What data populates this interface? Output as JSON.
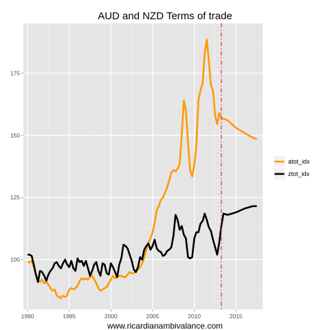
{
  "chart_data": {
    "type": "line",
    "title": "AUD and NZD Terms of trade",
    "xlabel": "www.ricardianambivalance.com",
    "ylabel": "",
    "x_ticks": [
      1990,
      1995,
      2000,
      2005,
      2010,
      2015
    ],
    "y_ticks": [
      100,
      125,
      150,
      175
    ],
    "xlim": [
      1989.5,
      2018.2
    ],
    "ylim": [
      80,
      195
    ],
    "grid": true,
    "legend_position": "right",
    "vline": {
      "x": 2013.25,
      "color": "#e41a1c",
      "style": "dashdot"
    },
    "series": [
      {
        "name": "atot_idx",
        "color": "#ff9900",
        "points": [
          [
            1990.0,
            99.0
          ],
          [
            1990.25,
            99.0
          ],
          [
            1990.5,
            99.5
          ],
          [
            1990.75,
            97.0
          ],
          [
            1991.0,
            94.0
          ],
          [
            1991.25,
            92.0
          ],
          [
            1991.5,
            91.0
          ],
          [
            1991.75,
            92.0
          ],
          [
            1992.0,
            90.5
          ],
          [
            1992.25,
            91.0
          ],
          [
            1992.5,
            90.0
          ],
          [
            1992.75,
            88.5
          ],
          [
            1993.0,
            87.5
          ],
          [
            1993.25,
            88.0
          ],
          [
            1993.5,
            85.5
          ],
          [
            1993.75,
            85.0
          ],
          [
            1994.0,
            84.5
          ],
          [
            1994.25,
            85.5
          ],
          [
            1994.5,
            85.0
          ],
          [
            1994.75,
            85.5
          ],
          [
            1995.0,
            88.0
          ],
          [
            1995.25,
            88.5
          ],
          [
            1995.5,
            88.0
          ],
          [
            1995.75,
            88.5
          ],
          [
            1996.0,
            89.5
          ],
          [
            1996.25,
            91.5
          ],
          [
            1996.5,
            92.5
          ],
          [
            1996.75,
            92.0
          ],
          [
            1997.0,
            92.5
          ],
          [
            1997.25,
            92.0
          ],
          [
            1997.5,
            93.0
          ],
          [
            1997.75,
            93.5
          ],
          [
            1998.0,
            92.0
          ],
          [
            1998.25,
            90.5
          ],
          [
            1998.5,
            88.5
          ],
          [
            1998.75,
            87.5
          ],
          [
            1999.0,
            88.0
          ],
          [
            1999.25,
            88.5
          ],
          [
            1999.5,
            89.0
          ],
          [
            1999.75,
            90.5
          ],
          [
            2000.0,
            92.0
          ],
          [
            2000.25,
            93.5
          ],
          [
            2000.5,
            92.5
          ],
          [
            2000.75,
            93.0
          ],
          [
            2001.0,
            93.5
          ],
          [
            2001.25,
            93.5
          ],
          [
            2001.5,
            93.0
          ],
          [
            2001.75,
            93.0
          ],
          [
            2002.0,
            94.0
          ],
          [
            2002.25,
            95.0
          ],
          [
            2002.5,
            94.5
          ],
          [
            2002.75,
            94.5
          ],
          [
            2003.0,
            95.5
          ],
          [
            2003.25,
            96.0
          ],
          [
            2003.5,
            97.0
          ],
          [
            2003.75,
            98.5
          ],
          [
            2004.0,
            101.0
          ],
          [
            2004.25,
            104.0
          ],
          [
            2004.5,
            107.0
          ],
          [
            2004.75,
            108.5
          ],
          [
            2005.0,
            111.0
          ],
          [
            2005.25,
            115.0
          ],
          [
            2005.5,
            120.0
          ],
          [
            2005.75,
            121.5
          ],
          [
            2006.0,
            124.0
          ],
          [
            2006.25,
            125.0
          ],
          [
            2006.5,
            127.0
          ],
          [
            2006.75,
            129.0
          ],
          [
            2007.0,
            132.0
          ],
          [
            2007.25,
            135.0
          ],
          [
            2007.5,
            136.0
          ],
          [
            2007.75,
            135.5
          ],
          [
            2008.0,
            136.5
          ],
          [
            2008.25,
            138.5
          ],
          [
            2008.5,
            150.0
          ],
          [
            2008.75,
            164.0
          ],
          [
            2009.0,
            160.0
          ],
          [
            2009.25,
            147.0
          ],
          [
            2009.5,
            136.0
          ],
          [
            2009.75,
            133.5
          ],
          [
            2010.0,
            138.0
          ],
          [
            2010.25,
            146.0
          ],
          [
            2010.5,
            164.0
          ],
          [
            2010.75,
            168.0
          ],
          [
            2011.0,
            171.0
          ],
          [
            2011.25,
            183.0
          ],
          [
            2011.5,
            188.5
          ],
          [
            2011.75,
            180.0
          ],
          [
            2012.0,
            170.0
          ],
          [
            2012.25,
            168.0
          ],
          [
            2012.5,
            158.0
          ],
          [
            2012.75,
            154.5
          ],
          [
            2013.0,
            159.0
          ],
          [
            2013.25,
            157.0
          ],
          [
            2014.0,
            156.0
          ],
          [
            2015.0,
            153.0
          ],
          [
            2016.0,
            151.0
          ],
          [
            2017.0,
            149.0
          ],
          [
            2017.5,
            148.5
          ]
        ]
      },
      {
        "name": "ztot_idx",
        "color": "#000000",
        "points": [
          [
            1990.0,
            102.0
          ],
          [
            1990.25,
            102.0
          ],
          [
            1990.5,
            101.5
          ],
          [
            1990.75,
            98.0
          ],
          [
            1991.0,
            94.0
          ],
          [
            1991.25,
            91.0
          ],
          [
            1991.5,
            95.5
          ],
          [
            1991.75,
            95.0
          ],
          [
            1992.0,
            93.5
          ],
          [
            1992.25,
            91.5
          ],
          [
            1992.5,
            94.0
          ],
          [
            1992.75,
            95.5
          ],
          [
            1993.0,
            96.5
          ],
          [
            1993.25,
            98.5
          ],
          [
            1993.5,
            99.0
          ],
          [
            1993.75,
            97.5
          ],
          [
            1994.0,
            96.5
          ],
          [
            1994.25,
            98.5
          ],
          [
            1994.5,
            100.0
          ],
          [
            1994.75,
            98.0
          ],
          [
            1995.0,
            97.0
          ],
          [
            1995.25,
            99.5
          ],
          [
            1995.5,
            96.5
          ],
          [
            1995.75,
            95.5
          ],
          [
            1996.0,
            100.5
          ],
          [
            1996.25,
            99.0
          ],
          [
            1996.5,
            99.5
          ],
          [
            1996.75,
            97.5
          ],
          [
            1997.0,
            99.5
          ],
          [
            1997.25,
            96.5
          ],
          [
            1997.5,
            93.5
          ],
          [
            1997.75,
            95.5
          ],
          [
            1998.0,
            98.0
          ],
          [
            1998.25,
            99.0
          ],
          [
            1998.5,
            95.5
          ],
          [
            1998.75,
            93.5
          ],
          [
            1999.0,
            98.5
          ],
          [
            1999.25,
            98.0
          ],
          [
            1999.5,
            94.5
          ],
          [
            1999.75,
            94.0
          ],
          [
            2000.0,
            98.5
          ],
          [
            2000.25,
            97.0
          ],
          [
            2000.5,
            95.0
          ],
          [
            2000.75,
            93.0
          ],
          [
            2001.0,
            98.0
          ],
          [
            2001.25,
            100.5
          ],
          [
            2001.5,
            106.0
          ],
          [
            2001.75,
            105.5
          ],
          [
            2002.0,
            104.5
          ],
          [
            2002.25,
            102.0
          ],
          [
            2002.5,
            99.5
          ],
          [
            2002.75,
            96.0
          ],
          [
            2003.0,
            95.0
          ],
          [
            2003.25,
            97.0
          ],
          [
            2003.5,
            101.0
          ],
          [
            2003.75,
            100.0
          ],
          [
            2004.0,
            104.0
          ],
          [
            2004.25,
            105.5
          ],
          [
            2004.5,
            106.5
          ],
          [
            2004.75,
            104.0
          ],
          [
            2005.0,
            105.5
          ],
          [
            2005.25,
            108.0
          ],
          [
            2005.5,
            104.5
          ],
          [
            2005.75,
            103.5
          ],
          [
            2006.0,
            103.0
          ],
          [
            2006.25,
            101.5
          ],
          [
            2006.5,
            102.0
          ],
          [
            2006.75,
            103.5
          ],
          [
            2007.0,
            104.0
          ],
          [
            2007.25,
            105.0
          ],
          [
            2007.5,
            109.5
          ],
          [
            2007.75,
            118.0
          ],
          [
            2008.0,
            116.0
          ],
          [
            2008.25,
            112.0
          ],
          [
            2008.5,
            113.5
          ],
          [
            2008.75,
            110.0
          ],
          [
            2009.0,
            108.5
          ],
          [
            2009.25,
            101.0
          ],
          [
            2009.5,
            100.5
          ],
          [
            2009.75,
            101.0
          ],
          [
            2010.0,
            108.5
          ],
          [
            2010.25,
            111.0
          ],
          [
            2010.5,
            111.0
          ],
          [
            2010.75,
            114.5
          ],
          [
            2011.0,
            115.5
          ],
          [
            2011.25,
            118.5
          ],
          [
            2011.5,
            116.0
          ],
          [
            2011.75,
            113.0
          ],
          [
            2012.0,
            111.5
          ],
          [
            2012.25,
            108.0
          ],
          [
            2012.5,
            105.0
          ],
          [
            2012.75,
            102.0
          ],
          [
            2013.0,
            107.0
          ],
          [
            2013.25,
            113.5
          ],
          [
            2013.5,
            118.5
          ],
          [
            2014.0,
            118.0
          ],
          [
            2014.5,
            118.5
          ],
          [
            2015.0,
            119.0
          ],
          [
            2016.0,
            120.5
          ],
          [
            2017.0,
            121.5
          ],
          [
            2017.5,
            121.5
          ]
        ]
      }
    ]
  }
}
